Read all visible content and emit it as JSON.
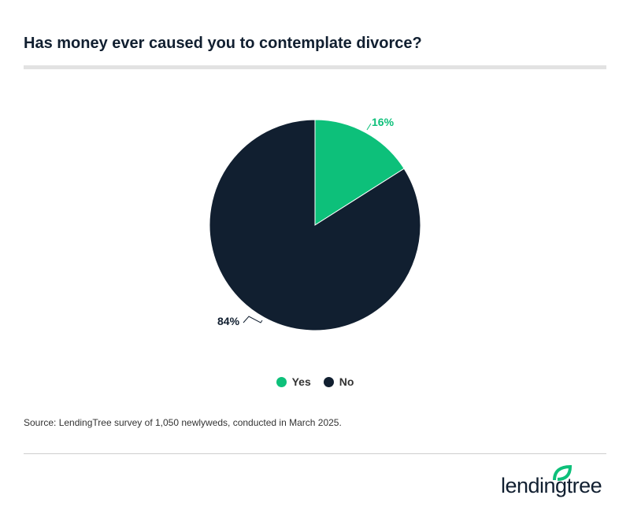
{
  "title": "Has money ever caused you to contemplate divorce?",
  "source": "Source: LendingTree survey of 1,050 newlyweds, conducted in March 2025.",
  "logo_text": "lendingtree",
  "colors": {
    "yes": "#0dc07a",
    "no": "#111f30"
  },
  "chart_data": {
    "type": "pie",
    "title": "Has money ever caused you to contemplate divorce?",
    "slices": [
      {
        "label": "Yes",
        "value": 16,
        "display": "16%",
        "color": "#0dc07a"
      },
      {
        "label": "No",
        "value": 84,
        "display": "84%",
        "color": "#111f30"
      }
    ],
    "legend": [
      "Yes",
      "No"
    ],
    "legend_position": "bottom"
  }
}
